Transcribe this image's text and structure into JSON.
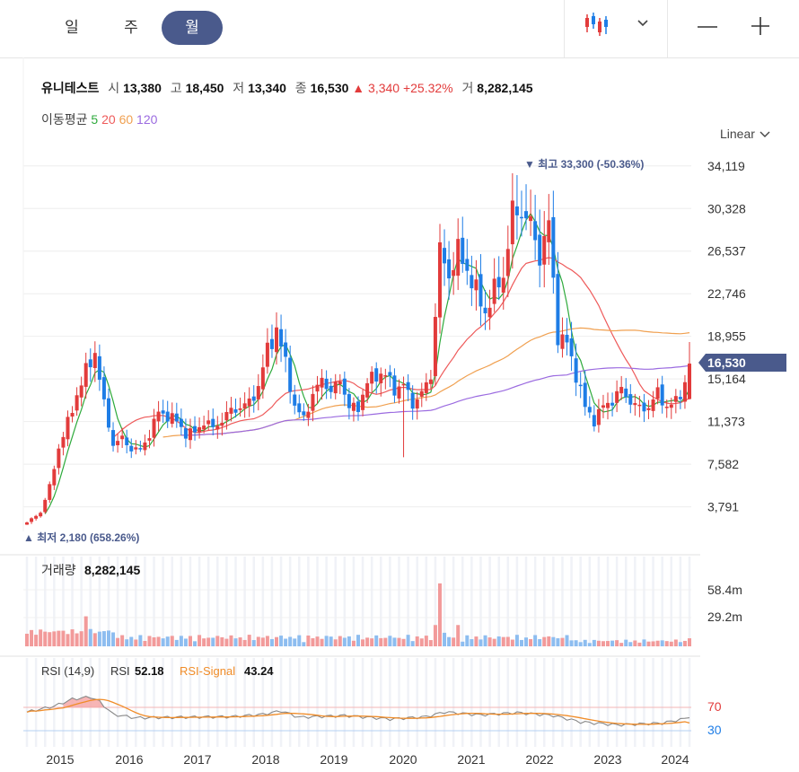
{
  "tabs": [
    {
      "label": "일",
      "active": false
    },
    {
      "label": "주",
      "active": false
    },
    {
      "label": "월",
      "active": true
    }
  ],
  "toolbar": {
    "chart_type_icon": "candlestick-icon",
    "dropdown_icon": "chevron-down-icon",
    "zoom_out": "—",
    "zoom_in": "+"
  },
  "stock": {
    "name": "유니테스트",
    "open_label": "시",
    "open": "13,380",
    "high_label": "고",
    "high": "18,450",
    "low_label": "저",
    "low": "13,340",
    "close_label": "종",
    "close": "16,530",
    "change": "▲ 3,340 +25.32%",
    "volume_label": "거",
    "volume": "8,282,145"
  },
  "ma_legend": {
    "label": "이동평균",
    "periods": [
      "5",
      "20",
      "60",
      "120"
    ],
    "colors": [
      "#2eaa3c",
      "#ee5a5a",
      "#f0a050",
      "#9b6be0"
    ]
  },
  "scale_select": "Linear",
  "colors": {
    "up": "#e23b3b",
    "down": "#1e7de6",
    "badge": "#4a5a8c",
    "rsi": "#888888",
    "signal": "#f08c28"
  },
  "chart_data": {
    "type": "candlestick",
    "y_ticks": [
      "34,119",
      "30,328",
      "26,537",
      "22,746",
      "18,955",
      "15,164",
      "11,373",
      "7,582",
      "3,791"
    ],
    "y_tick_values": [
      34119,
      30328,
      26537,
      22746,
      18955,
      15164,
      11373,
      7582,
      3791
    ],
    "ylim": [
      1600,
      35700
    ],
    "x_labels": [
      "2015",
      "2016",
      "2017",
      "2018",
      "2019",
      "2020",
      "2021",
      "2022",
      "2023",
      "2024"
    ],
    "current_price_label": "16,530",
    "max_marker": "▼ 최고 33,300 (-50.36%)",
    "min_marker": "▲ 최저 2,180 (658.26%)",
    "close_anchors": [
      [
        0,
        2400
      ],
      [
        3,
        3300
      ],
      [
        5,
        5600
      ],
      [
        7,
        9000
      ],
      [
        9,
        11300
      ],
      [
        11,
        13700
      ],
      [
        13,
        15900
      ],
      [
        15,
        17500
      ],
      [
        17,
        12900
      ],
      [
        19,
        9300
      ],
      [
        21,
        9900
      ],
      [
        23,
        8900
      ],
      [
        25,
        8900
      ],
      [
        27,
        10200
      ],
      [
        29,
        12300
      ],
      [
        31,
        11800
      ],
      [
        33,
        11500
      ],
      [
        35,
        10200
      ],
      [
        37,
        10500
      ],
      [
        39,
        11300
      ],
      [
        41,
        10900
      ],
      [
        43,
        11400
      ],
      [
        45,
        12500
      ],
      [
        47,
        12500
      ],
      [
        49,
        13200
      ],
      [
        51,
        14300
      ],
      [
        53,
        18000
      ],
      [
        55,
        19300
      ],
      [
        57,
        16800
      ],
      [
        59,
        12500
      ],
      [
        61,
        11800
      ],
      [
        63,
        13600
      ],
      [
        65,
        15300
      ],
      [
        67,
        13900
      ],
      [
        69,
        15200
      ],
      [
        71,
        12600
      ],
      [
        73,
        12600
      ],
      [
        75,
        14900
      ],
      [
        77,
        15500
      ],
      [
        79,
        15600
      ],
      [
        81,
        14200
      ],
      [
        83,
        14700
      ],
      [
        85,
        12900
      ],
      [
        87,
        13900
      ],
      [
        89,
        15400
      ],
      [
        91,
        26600
      ],
      [
        93,
        24300
      ],
      [
        95,
        26600
      ],
      [
        97,
        24800
      ],
      [
        99,
        23000
      ],
      [
        101,
        21000
      ],
      [
        103,
        23100
      ],
      [
        105,
        24300
      ],
      [
        107,
        30000
      ],
      [
        109,
        30000
      ],
      [
        111,
        29000
      ],
      [
        113,
        26000
      ],
      [
        115,
        29000
      ],
      [
        117,
        18900
      ],
      [
        119,
        18400
      ],
      [
        121,
        15500
      ],
      [
        123,
        12700
      ],
      [
        125,
        11400
      ],
      [
        127,
        12800
      ],
      [
        129,
        13200
      ],
      [
        131,
        14300
      ],
      [
        133,
        13100
      ],
      [
        135,
        12600
      ],
      [
        137,
        12600
      ],
      [
        139,
        14000
      ],
      [
        141,
        12600
      ],
      [
        143,
        13200
      ],
      [
        145,
        14700
      ],
      [
        146,
        16530
      ]
    ],
    "rsi": {
      "label": "RSI (14,9)",
      "rsi_label": "RSI",
      "rsi_value": "52.18",
      "signal_label": "RSI-Signal",
      "signal_value": "43.24",
      "levels": [
        "70",
        "30"
      ]
    },
    "volume": {
      "label": "거래량",
      "value": "8,282,145",
      "ticks": [
        "58.4m",
        "29.2m"
      ]
    }
  }
}
